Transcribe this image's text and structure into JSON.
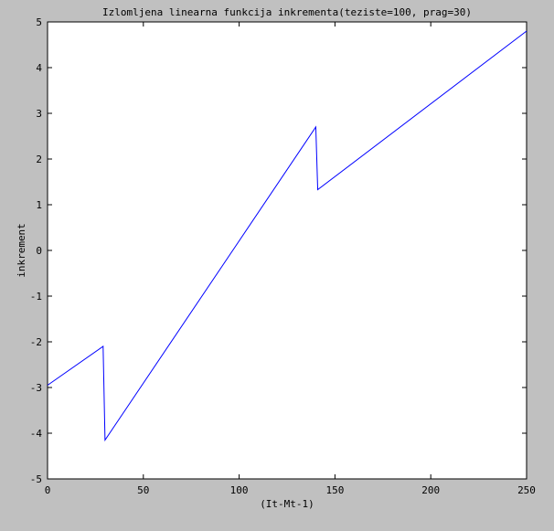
{
  "chart_data": {
    "type": "line",
    "title": "Izlomljena linearna funkcija inkrementa(teziste=100, prag=30)",
    "xlabel": "(It-Mt-1)",
    "ylabel": "inkrement",
    "xlim": [
      0,
      250
    ],
    "ylim": [
      -5,
      5
    ],
    "xticks": [
      0,
      50,
      100,
      150,
      200,
      250
    ],
    "yticks": [
      -5,
      -4,
      -3,
      -2,
      -1,
      0,
      1,
      2,
      3,
      4,
      5
    ],
    "grid": false,
    "series": [
      {
        "color": "#0000ff",
        "x": [
          0,
          29,
          30,
          140,
          141,
          250
        ],
        "y": [
          -2.95,
          -2.1,
          -4.15,
          2.7,
          1.33,
          4.8
        ]
      }
    ]
  },
  "colors": {
    "background": "#c0c0c0",
    "plot_area": "#ffffff",
    "line": "#0000ff"
  }
}
